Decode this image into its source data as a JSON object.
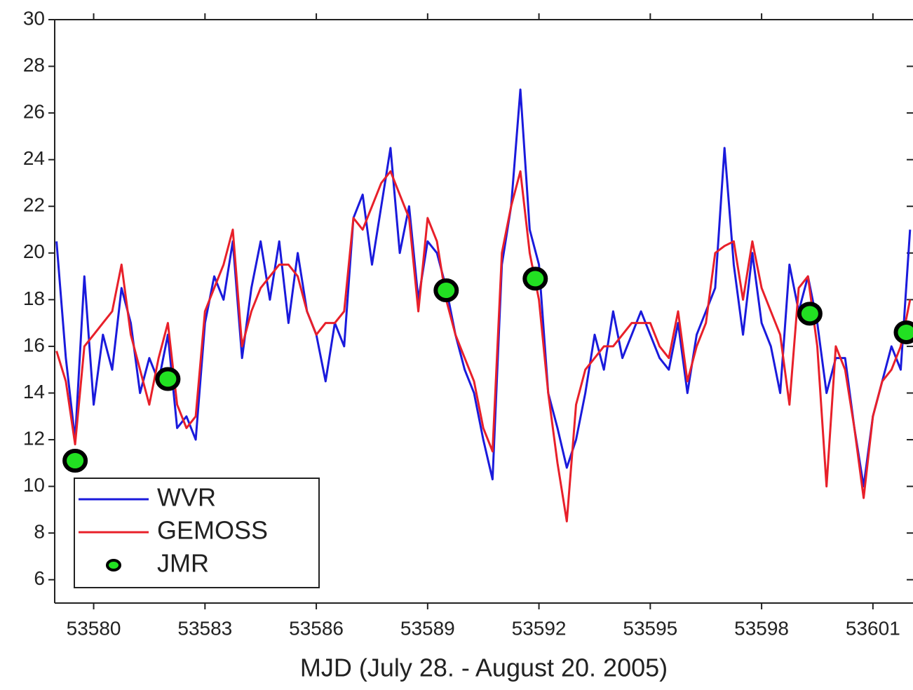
{
  "chart_data": {
    "type": "line",
    "x_label": "MJD (July 28. - August 20. 2005)",
    "xlim": [
      53578.95,
      53602.08
    ],
    "ylim": [
      5,
      30
    ],
    "xticks": [
      53580,
      53583,
      53586,
      53589,
      53592,
      53595,
      53598,
      53601
    ],
    "yticks": [
      6,
      8,
      10,
      12,
      14,
      16,
      18,
      20,
      22,
      24,
      26,
      28,
      30
    ],
    "legend": "lower left",
    "x": [
      53579.0,
      53579.25,
      53579.5,
      53579.75,
      53580.0,
      53580.25,
      53580.5,
      53580.75,
      53581.0,
      53581.25,
      53581.5,
      53581.75,
      53582.0,
      53582.25,
      53582.5,
      53582.75,
      53583.0,
      53583.25,
      53583.5,
      53583.75,
      53584.0,
      53584.25,
      53584.5,
      53584.75,
      53585.0,
      53585.25,
      53585.5,
      53585.75,
      53586.0,
      53586.25,
      53586.5,
      53586.75,
      53587.0,
      53587.25,
      53587.5,
      53587.75,
      53588.0,
      53588.25,
      53588.5,
      53588.75,
      53589.0,
      53589.25,
      53589.5,
      53589.75,
      53590.0,
      53590.25,
      53590.5,
      53590.75,
      53591.0,
      53591.25,
      53591.5,
      53591.75,
      53592.0,
      53592.25,
      53592.5,
      53592.75,
      53593.0,
      53593.25,
      53593.5,
      53593.75,
      53594.0,
      53594.25,
      53594.5,
      53594.75,
      53595.0,
      53595.25,
      53595.5,
      53595.75,
      53596.0,
      53596.25,
      53596.5,
      53596.75,
      53597.0,
      53597.25,
      53597.5,
      53597.75,
      53598.0,
      53598.25,
      53598.5,
      53598.75,
      53599.0,
      53599.25,
      53599.5,
      53599.75,
      53600.0,
      53600.25,
      53600.5,
      53600.75,
      53601.0,
      53601.25,
      53601.5,
      53601.75,
      53602.0
    ],
    "series": [
      {
        "name": "WVR",
        "color": "#1a1adc",
        "mode": "line",
        "values": [
          20.5,
          15.5,
          12.0,
          19.0,
          13.5,
          16.5,
          15.0,
          18.5,
          17.0,
          14.0,
          15.5,
          14.5,
          16.5,
          12.5,
          13.0,
          12.0,
          17.0,
          19.0,
          18.0,
          20.5,
          15.5,
          18.5,
          20.5,
          18.0,
          20.5,
          17.0,
          20.0,
          17.5,
          16.5,
          14.5,
          17.0,
          16.0,
          21.5,
          22.5,
          19.5,
          22.0,
          24.5,
          20.0,
          22.0,
          18.0,
          20.5,
          20.0,
          18.5,
          16.5,
          15.0,
          14.0,
          12.0,
          10.3,
          19.5,
          22.0,
          27.0,
          21.0,
          19.5,
          14.0,
          12.5,
          10.8,
          12.0,
          14.0,
          16.5,
          15.0,
          17.5,
          15.5,
          16.5,
          17.5,
          16.5,
          15.5,
          15.0,
          17.0,
          14.0,
          16.5,
          17.5,
          18.5,
          24.5,
          19.5,
          16.5,
          20.0,
          17.0,
          16.0,
          14.0,
          19.5,
          17.5,
          19.0,
          17.0,
          14.0,
          15.5,
          15.5,
          12.5,
          10.0,
          13.0,
          14.5,
          16.0,
          15.0,
          21.0
        ]
      },
      {
        "name": "GEMOSS",
        "color": "#e8202a",
        "mode": "line",
        "values": [
          15.8,
          14.5,
          11.8,
          16.0,
          16.5,
          17.0,
          17.5,
          19.5,
          16.5,
          15.0,
          13.5,
          15.5,
          17.0,
          13.5,
          12.5,
          13.0,
          17.5,
          18.5,
          19.5,
          21.0,
          16.0,
          17.5,
          18.5,
          19.0,
          19.5,
          19.5,
          19.0,
          17.5,
          16.5,
          17.0,
          17.0,
          17.5,
          21.5,
          21.0,
          22.0,
          23.0,
          23.5,
          22.5,
          21.5,
          17.5,
          21.5,
          20.5,
          18.0,
          16.5,
          15.5,
          14.5,
          12.5,
          11.5,
          20.0,
          22.0,
          23.5,
          20.0,
          18.0,
          14.0,
          11.0,
          8.5,
          13.5,
          15.0,
          15.5,
          16.0,
          16.0,
          16.5,
          17.0,
          17.0,
          17.0,
          16.0,
          15.5,
          17.5,
          14.5,
          16.0,
          17.0,
          20.0,
          20.3,
          20.5,
          18.0,
          20.5,
          18.5,
          17.5,
          16.5,
          13.5,
          18.5,
          19.0,
          16.0,
          10.0,
          16.0,
          15.0,
          12.5,
          9.5,
          13.0,
          14.5,
          15.0,
          16.0,
          18.0
        ]
      },
      {
        "name": "JMR",
        "color": "#22e022",
        "mode": "markers",
        "x": [
          53579.5,
          53582.0,
          53589.5,
          53591.9,
          53599.3,
          53601.9
        ],
        "values": [
          11.1,
          14.6,
          18.4,
          18.9,
          17.4,
          16.6
        ]
      }
    ]
  }
}
